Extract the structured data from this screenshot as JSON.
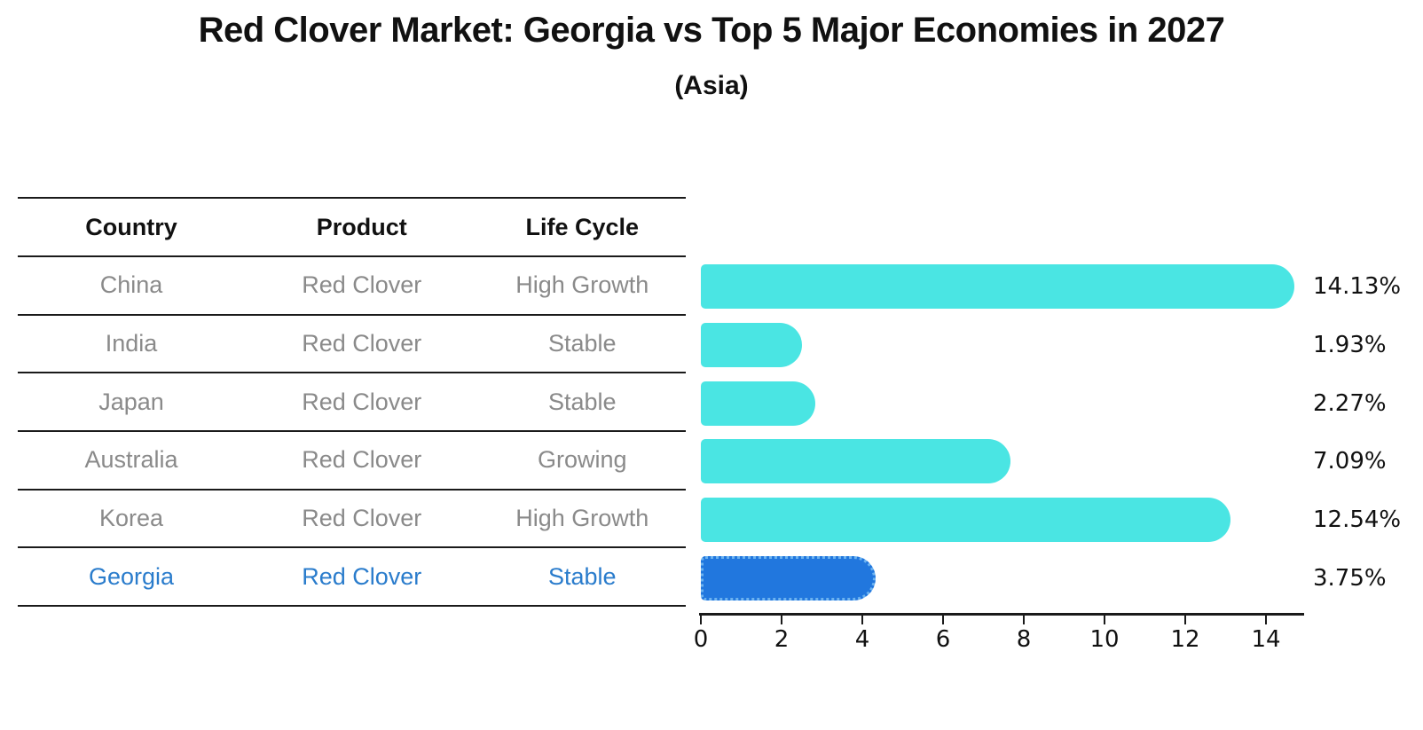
{
  "title": "Red Clover Market: Georgia vs Top 5 Major Economies in 2027",
  "subtitle": "(Asia)",
  "table": {
    "headers": [
      "Country",
      "Product",
      "Life Cycle"
    ],
    "rows": [
      {
        "country": "China",
        "product": "Red Clover",
        "life_cycle": "High Growth",
        "highlight": false
      },
      {
        "country": "India",
        "product": "Red Clover",
        "life_cycle": "Stable",
        "highlight": false
      },
      {
        "country": "Japan",
        "product": "Red Clover",
        "life_cycle": "Stable",
        "highlight": false
      },
      {
        "country": "Australia",
        "product": "Red Clover",
        "life_cycle": "Growing",
        "highlight": false
      },
      {
        "country": "Korea",
        "product": "Red Clover",
        "life_cycle": "High Growth",
        "highlight": false
      },
      {
        "country": "Georgia",
        "product": "Red Clover",
        "life_cycle": "Stable",
        "highlight": true
      }
    ]
  },
  "chart_data": {
    "type": "bar",
    "orientation": "horizontal",
    "title": "Red Clover Market: Georgia vs Top 5 Major Economies in 2027",
    "subtitle": "(Asia)",
    "categories": [
      "China",
      "India",
      "Japan",
      "Australia",
      "Korea",
      "Georgia"
    ],
    "values": [
      14.13,
      1.93,
      2.27,
      7.09,
      12.54,
      3.75
    ],
    "value_labels": [
      "14.13%",
      "1.93%",
      "2.27%",
      "7.09%",
      "12.54%",
      "3.75%"
    ],
    "highlight_index": 5,
    "x_ticks": [
      0,
      2,
      4,
      6,
      8,
      10,
      12,
      14
    ],
    "x_tick_labels": [
      "0",
      "2",
      "4",
      "6",
      "8",
      "10",
      "12",
      "14"
    ],
    "xlim": [
      0,
      14.9
    ],
    "grid": false,
    "legend": false,
    "colors": {
      "bar": "#4ae5e3",
      "highlight_bar": "#2177de",
      "highlight_bar_border": "#6cb3f0",
      "axis": "#1a1a1a",
      "value_label_text": "#111111",
      "table_text_muted": "#8a8a8a",
      "table_header_text": "#111111",
      "highlight_text": "#2a7ccc"
    }
  }
}
